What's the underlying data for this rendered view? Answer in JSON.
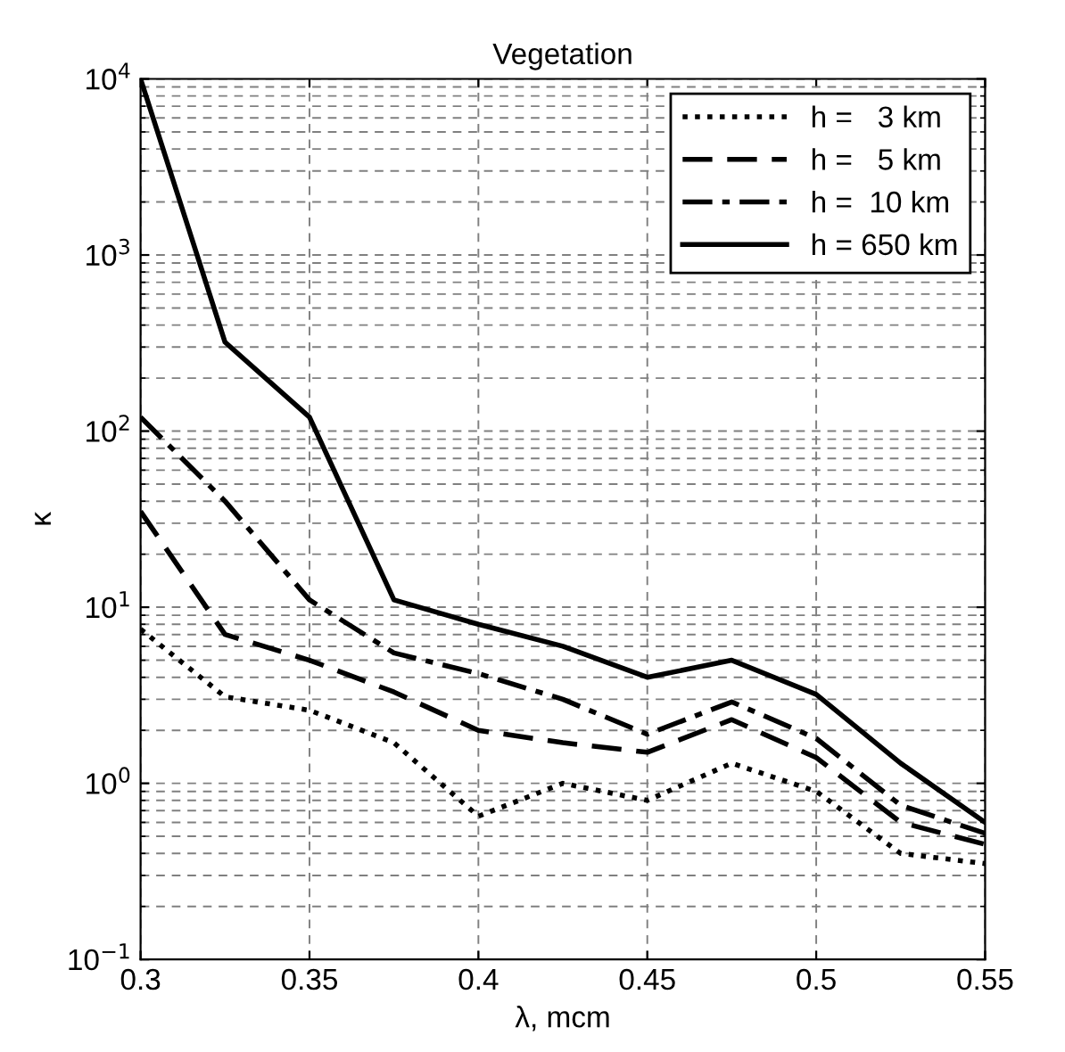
{
  "chart_data": {
    "type": "line",
    "title": "Vegetation",
    "xlabel": "λ, mcm",
    "ylabel": "κ",
    "x": [
      0.3,
      0.325,
      0.35,
      0.375,
      0.4,
      0.425,
      0.45,
      0.475,
      0.5,
      0.525,
      0.55
    ],
    "series": [
      {
        "name": "h =   3 km",
        "color": "#000000",
        "line_style": "dotted",
        "values": [
          7.5,
          3.1,
          2.6,
          1.7,
          0.65,
          1.0,
          0.8,
          1.3,
          0.9,
          0.4,
          0.35
        ]
      },
      {
        "name": "h =   5 km",
        "color": "#000000",
        "line_style": "dashed",
        "values": [
          35,
          7,
          5,
          3.3,
          2,
          1.7,
          1.5,
          2.3,
          1.4,
          0.6,
          0.45
        ]
      },
      {
        "name": "h =  10 km",
        "color": "#000000",
        "line_style": "dashdot",
        "values": [
          120,
          40,
          11,
          5.5,
          4.2,
          3,
          1.9,
          2.9,
          1.8,
          0.75,
          0.52
        ]
      },
      {
        "name": "h = 650 km",
        "color": "#000000",
        "line_style": "solid",
        "values": [
          10000,
          320,
          120,
          11,
          8,
          6,
          4,
          5,
          3.2,
          1.3,
          0.6
        ]
      }
    ],
    "log": "y",
    "xlim": [
      0.3,
      0.55
    ],
    "xticks": [
      0.3,
      0.35,
      0.4,
      0.45,
      0.5,
      0.55
    ],
    "ylim": [
      0.1,
      10000
    ],
    "yticks": [
      {
        "value": 0.1,
        "label": "10$^{−1}$"
      },
      {
        "value": 1,
        "label": "10$^{0}$"
      },
      {
        "value": 10,
        "label": "10$^{1}$"
      },
      {
        "value": 100,
        "label": "10$^{2}$"
      },
      {
        "value": 1000,
        "label": "10$^{3}$"
      },
      {
        "value": 10000,
        "label": "10$^{4}$"
      }
    ],
    "grid": true,
    "legend": "top right",
    "marker": "none"
  }
}
